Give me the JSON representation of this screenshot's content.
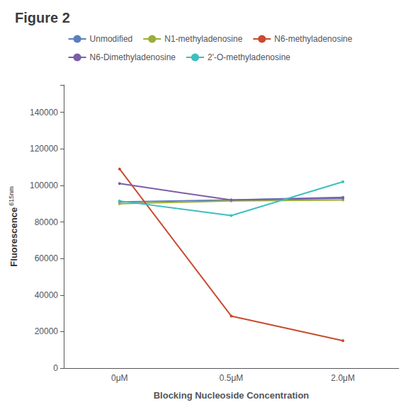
{
  "chart_data": {
    "type": "line",
    "title": "Figure 2",
    "xlabel": "Blocking Nucleoside Concentration",
    "ylabel": "Fluorescence",
    "annotations": [
      "615nm"
    ],
    "categories": [
      "0μM",
      "0.5μM",
      "2.0μM"
    ],
    "series": [
      {
        "name": "Unmodified",
        "color": "#5b7fbd",
        "values": [
          91000,
          92000,
          93500
        ]
      },
      {
        "name": "N1-methyladenosine",
        "color": "#9aaf3a",
        "values": [
          90000,
          91500,
          92000
        ]
      },
      {
        "name": "N6-methyladenosine",
        "color": "#c84b2e",
        "values": [
          109000,
          28500,
          15000
        ]
      },
      {
        "name": "N6-Dimethyladenosine",
        "color": "#7b5ea7",
        "values": [
          101000,
          92000,
          93000
        ]
      },
      {
        "name": "2'-O-methyladenosine",
        "color": "#3dbfbf",
        "values": [
          91500,
          83500,
          102000
        ]
      }
    ],
    "ylim": [
      0,
      155000
    ],
    "yticks": [
      0,
      20000,
      40000,
      60000,
      80000,
      100000,
      120000,
      140000
    ],
    "grid": false,
    "legend": "top"
  }
}
